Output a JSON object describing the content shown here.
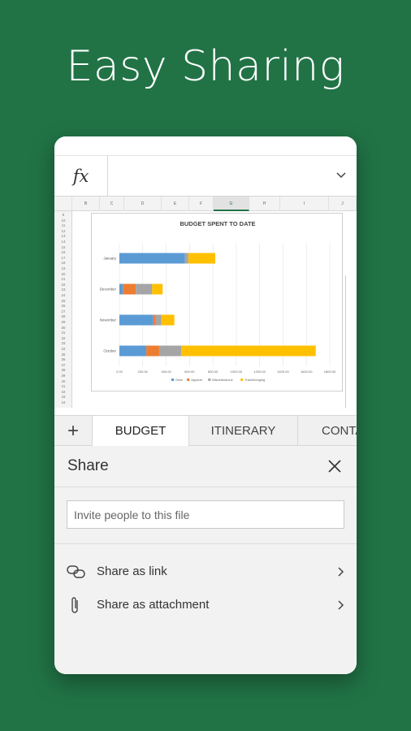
{
  "headline": "Easy Sharing",
  "formula_bar": {
    "fx_label": "fx"
  },
  "sheet": {
    "columns": [
      "B",
      "C",
      "D",
      "E",
      "F",
      "G",
      "H",
      "I",
      "J"
    ],
    "selected_column": "G",
    "rows": [
      "9",
      "10",
      "11",
      "12",
      "13",
      "14",
      "15",
      "16",
      "17",
      "18",
      "19",
      "20",
      "21",
      "22",
      "23",
      "24",
      "25",
      "26",
      "27",
      "28",
      "29",
      "30",
      "31",
      "32",
      "33",
      "34",
      "35",
      "36",
      "37",
      "38",
      "39",
      "40",
      "41",
      "42",
      "43",
      "44"
    ]
  },
  "chart_data": {
    "type": "bar",
    "orientation": "horizontal",
    "stacked": true,
    "title": "BUDGET SPENT TO DATE",
    "categories": [
      "January",
      "December",
      "November",
      "October"
    ],
    "series": [
      {
        "name": "Gear",
        "color": "#5B9BD5",
        "values": [
          560,
          30,
          290,
          230
        ]
      },
      {
        "name": "Apparel",
        "color": "#ED7D31",
        "values": [
          0,
          110,
          20,
          110
        ]
      },
      {
        "name": "Miscellaneous",
        "color": "#A5A5A5",
        "values": [
          30,
          140,
          50,
          190
        ]
      },
      {
        "name": "Travel/lodging",
        "color": "#FFC000",
        "values": [
          230,
          90,
          110,
          1150
        ]
      }
    ],
    "xticks": [
      "0.00",
      "200.00",
      "400.00",
      "600.00",
      "800.00",
      "1000.00",
      "1200.00",
      "1400.00",
      "1600.00",
      "1800.00"
    ],
    "xlim": [
      0,
      1800
    ],
    "grid": "vertical",
    "legend_position": "bottom"
  },
  "tabs": {
    "add_label": "+",
    "items": [
      "BUDGET",
      "ITINERARY",
      "CONTA"
    ]
  },
  "share": {
    "title": "Share",
    "invite_placeholder": "Invite people to this file",
    "options": [
      {
        "label": "Share as link",
        "icon": "link-icon"
      },
      {
        "label": "Share as attachment",
        "icon": "paperclip-icon"
      }
    ]
  },
  "colors": {
    "background": "#217346",
    "accent": "#217346"
  }
}
